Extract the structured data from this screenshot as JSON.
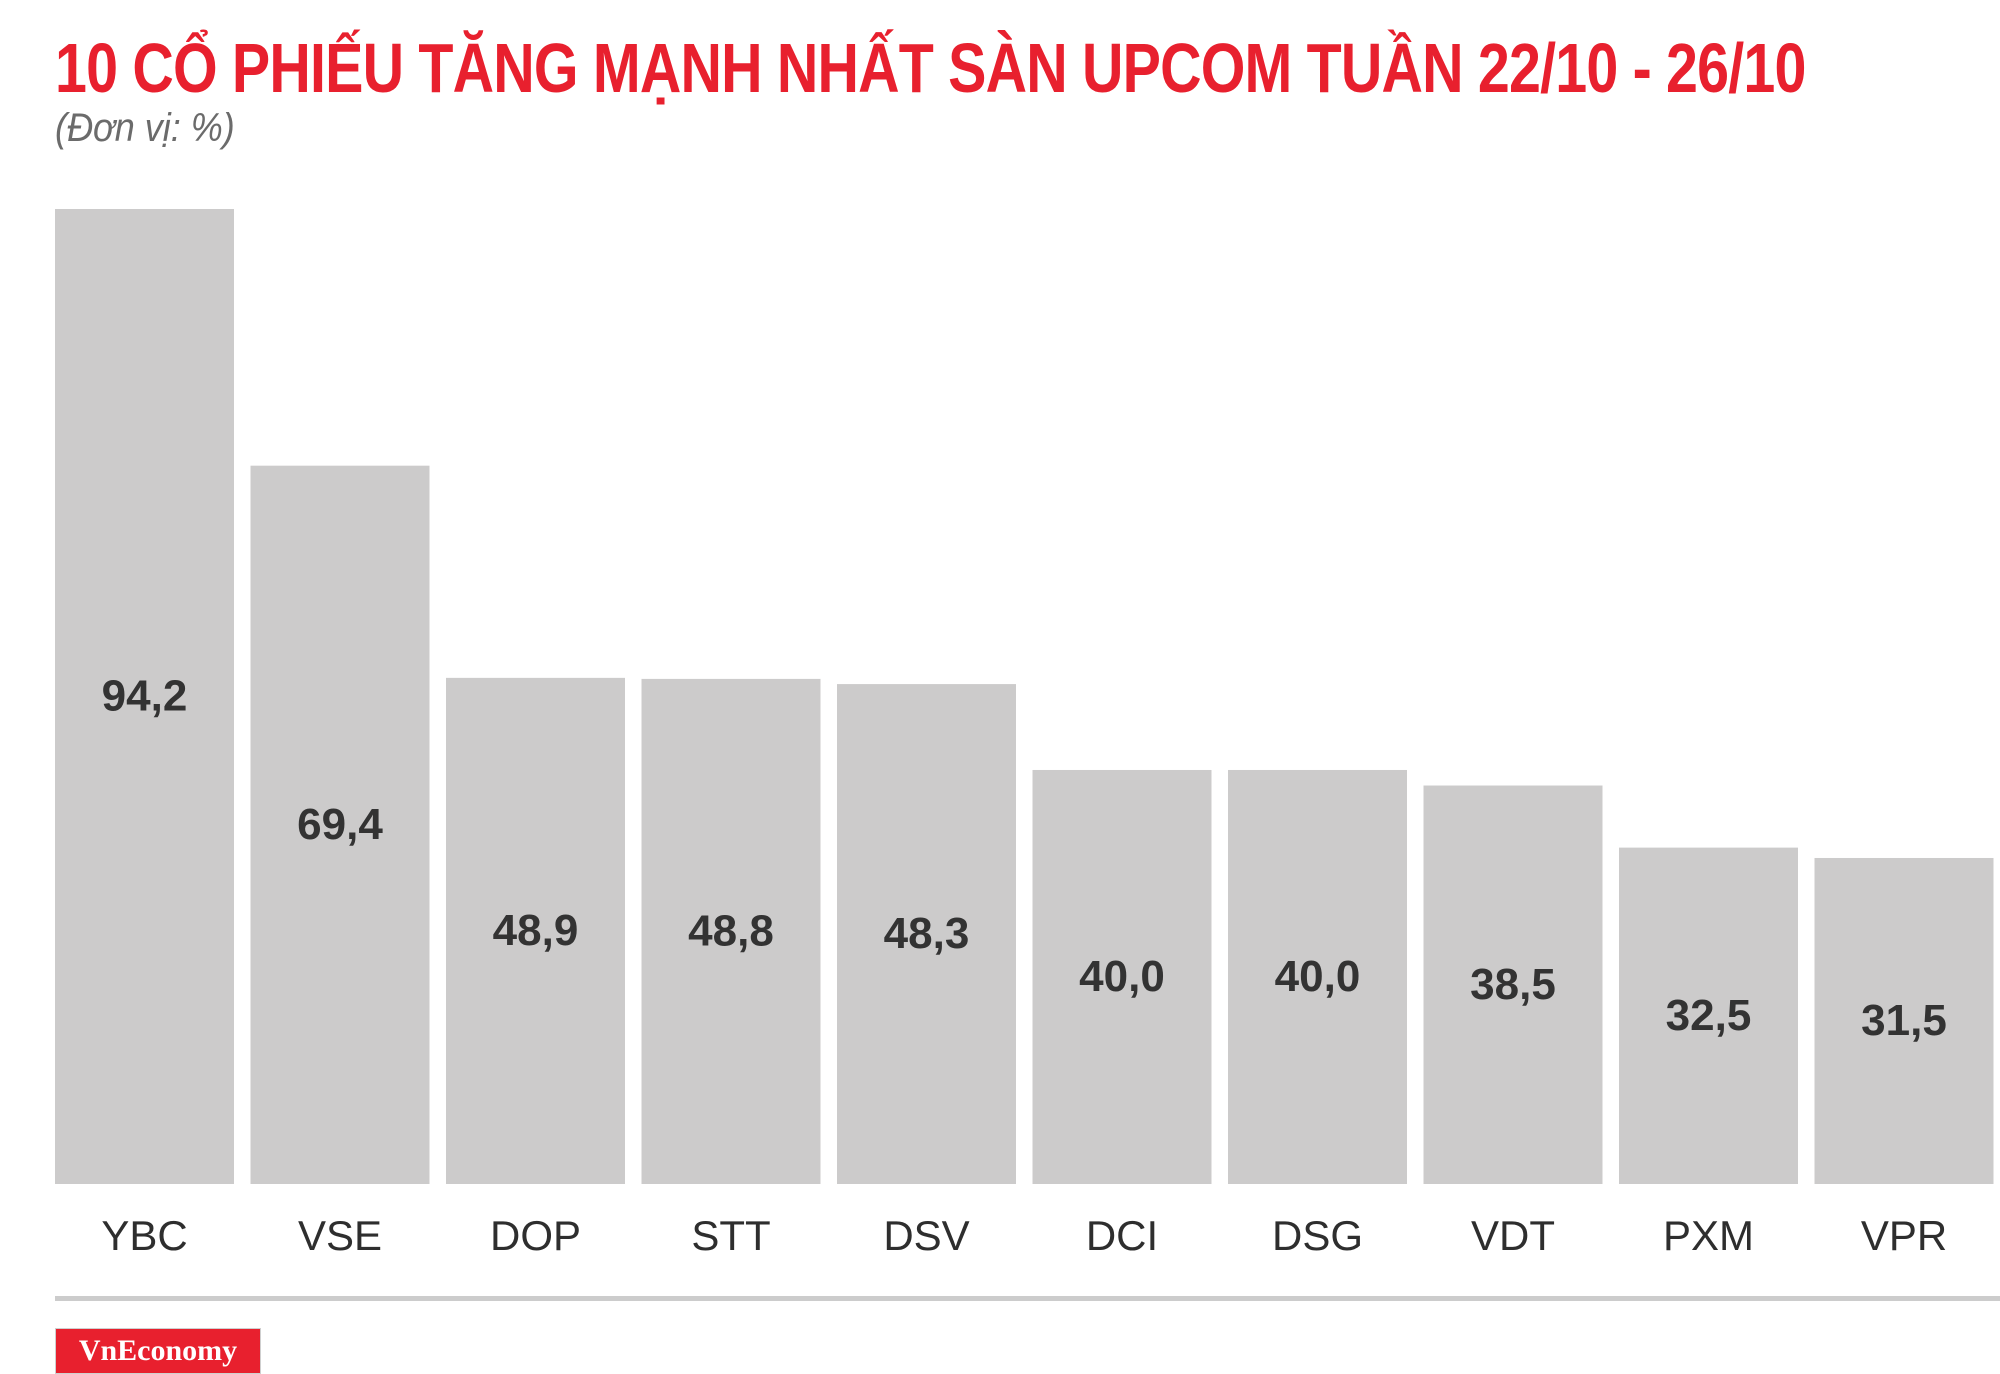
{
  "header": {
    "title": "10 CỔ PHIẾU TĂNG MẠNH NHẤT SÀN UPCOM TUẦN 22/10 - 26/10",
    "unit": "(Đơn vị: %)"
  },
  "brand": {
    "logo_text": "VnEconomy"
  },
  "colors": {
    "title": "#e8202e",
    "bar": "#cccbcb",
    "logo_bg": "#e8202e",
    "divider": "#cccccc"
  },
  "chart_data": {
    "type": "bar",
    "title": "10 CỔ PHIẾU TĂNG MẠNH NHẤT SÀN UPCOM TUẦN 22/10 - 26/10",
    "subtitle": "(Đơn vị: %)",
    "categories": [
      "YBC",
      "VSE",
      "DOP",
      "STT",
      "DSV",
      "DCI",
      "DSG",
      "VDT",
      "PXM",
      "VPR"
    ],
    "values": [
      94.2,
      69.4,
      48.9,
      48.8,
      48.3,
      40.0,
      40.0,
      38.5,
      32.5,
      31.5
    ],
    "value_labels": [
      "94,2",
      "69,4",
      "48,9",
      "48,8",
      "48,3",
      "40,0",
      "40,0",
      "38,5",
      "32,5",
      "31,5"
    ],
    "xlabel": "",
    "ylabel": "",
    "ylim": [
      0,
      94.2
    ],
    "grid": false,
    "legend": "none"
  }
}
